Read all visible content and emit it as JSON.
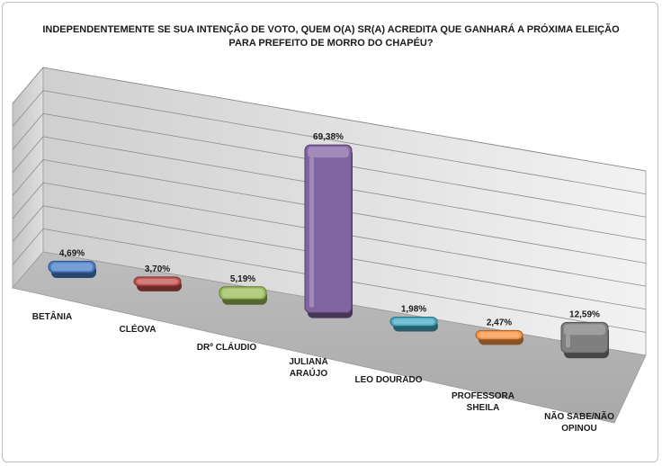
{
  "chart_data": {
    "type": "bar",
    "title_line1": "INDEPENDENTEMENTE SE SUA INTENÇÃO DE VOTO, QUEM O(A) SR(A) ACREDITA QUE GANHARÁ A PRÓXIMA ELEIÇÃO",
    "title_line2": "PARA PREFEITO DE MORRO DO CHAPÉU?",
    "categories": [
      [
        "BETÂNIA"
      ],
      [
        "CLÉOVA"
      ],
      [
        "DRº CLÁUDIO"
      ],
      [
        "JULIANA",
        "ARAÚJO"
      ],
      [
        "LEO DOURADO"
      ],
      [
        "PROFESSORA",
        "SHEILA"
      ],
      [
        "NÃO SABE/NÃO",
        "OPINOU"
      ]
    ],
    "values": [
      4.69,
      3.7,
      5.19,
      69.38,
      1.98,
      2.47,
      12.59
    ],
    "value_labels": [
      "4,69%",
      "3,70%",
      "5,19%",
      "69,38%",
      "1,98%",
      "2,47%",
      "12,59%"
    ],
    "colors": [
      "#4a7fc8",
      "#c0504d",
      "#9bbb59",
      "#8064a2",
      "#4bacc6",
      "#f79646",
      "#7f7f7f"
    ],
    "ylim": [
      0,
      80
    ],
    "grid": true,
    "legend": "none"
  }
}
